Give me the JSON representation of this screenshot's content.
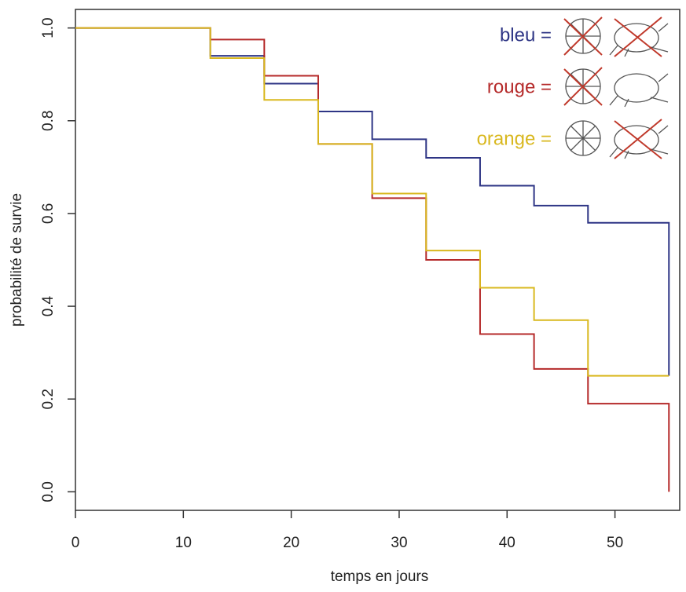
{
  "chart_data": {
    "type": "step",
    "x_label": "temps en jours",
    "y_label": "probabilité de survie",
    "x": [
      0,
      12.5,
      17.5,
      22.5,
      27.5,
      32.5,
      37.5,
      42.5,
      47.5,
      55
    ],
    "series": [
      {
        "name": "bleu =",
        "color": "#2e3585",
        "values": [
          1,
          0.94,
          0.88,
          0.82,
          0.76,
          0.72,
          0.66,
          0.617,
          0.58,
          0.25
        ]
      },
      {
        "name": "rouge =",
        "color": "#b52a2a",
        "values": [
          1,
          0.975,
          0.897,
          0.75,
          0.633,
          0.5,
          0.34,
          0.265,
          0.19,
          0
        ]
      },
      {
        "name": "orange =",
        "color": "#d9b81f",
        "values": [
          1,
          0.935,
          0.845,
          0.75,
          0.643,
          0.52,
          0.44,
          0.37,
          0.25,
          0.25
        ]
      }
    ],
    "xlim": [
      0,
      56
    ],
    "ylim": [
      -0.04,
      1.04
    ],
    "xticks": [
      0,
      10,
      20,
      30,
      40,
      50
    ],
    "yticks": [
      {
        "value": 0,
        "label": "0.0"
      },
      {
        "value": 0.2,
        "label": "0.2"
      },
      {
        "value": 0.4,
        "label": "0.4"
      },
      {
        "value": 0.6,
        "label": "0.6"
      },
      {
        "value": 0.8,
        "label": "0.8"
      },
      {
        "value": 1,
        "label": "1.0"
      }
    ]
  }
}
